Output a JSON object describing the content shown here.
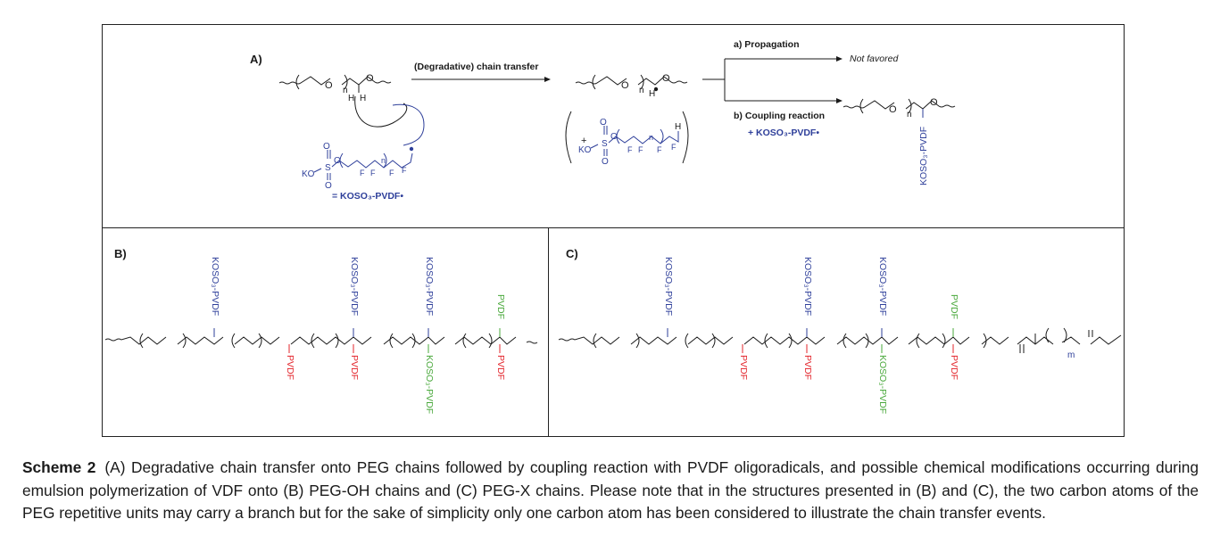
{
  "colors": {
    "black": "#1a1a1a",
    "blue": "#2e3f9a",
    "red": "#e3242b",
    "green": "#49a83b"
  },
  "panel_a": {
    "label": "A)",
    "arrow_text": "(Degradative) chain transfer",
    "branch_a_label": "a) Propagation",
    "branch_a_result": "Not favored",
    "branch_b_label": "b) Coupling reaction",
    "branch_b_reagent": "+ KOSO₃-PVDF•",
    "radical_legend": "= KOSO₃-PVDF•",
    "product_branch": "KOSO₃-PVDF",
    "n": "n",
    "H": "H",
    "O": "O",
    "S": "S",
    "KO": "KO",
    "F": "F",
    "plus": "+"
  },
  "panel_b": {
    "label": "B)",
    "top_branches": [
      "KOSO₃-PVDF",
      "KOSO₃-PVDF",
      "KOSO₃-PVDF",
      "PVDF"
    ],
    "bottom_branches": [
      "PVDF",
      "PVDF",
      "KOSO₃-PVDF",
      "PVDF"
    ]
  },
  "panel_c": {
    "label": "C)",
    "top_branches": [
      "KOSO₃-PVDF",
      "KOSO₃-PVDF",
      "KOSO₃-PVDF",
      "PVDF"
    ],
    "bottom_branches": [
      "PVDF",
      "PVDF",
      "KOSO₃-PVDF",
      "PVDF"
    ],
    "m": "m"
  },
  "caption": {
    "label": "Scheme 2",
    "text": "(A) Degradative chain transfer onto PEG chains followed by coupling reaction with PVDF oligoradicals, and possible chemical modifications occurring during emulsion polymerization of VDF onto (B) PEG-OH chains and (C) PEG-X chains. Please note that in the structures presented in (B) and (C), the two carbon atoms of the PEG repetitive units may carry a branch but for the sake of simplicity only one carbon atom has been considered to illustrate the chain transfer events."
  }
}
